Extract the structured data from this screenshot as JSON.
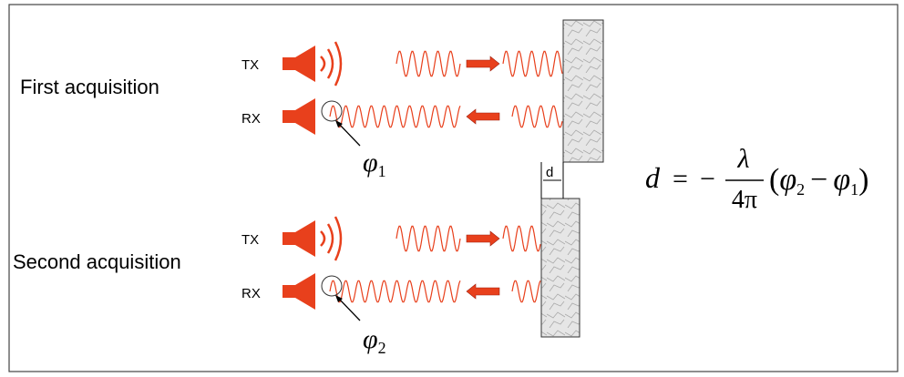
{
  "acquisitions": [
    {
      "title": "First acquisition",
      "tx": "TX",
      "rx": "RX",
      "phase": {
        "symbol": "φ",
        "subscript": "1"
      }
    },
    {
      "title": "Second acquisition",
      "tx": "TX",
      "rx": "RX",
      "phase": {
        "symbol": "φ",
        "subscript": "2"
      }
    }
  ],
  "displacement_label": "d",
  "formula": {
    "lhs": "d",
    "equals": "=",
    "minus": "−",
    "numerator": "λ",
    "denominator": "4π",
    "open": "(",
    "phi_a": "φ",
    "sub_a": "2",
    "op": "−",
    "phi_b": "φ",
    "sub_b": "1",
    "close": ")"
  }
}
